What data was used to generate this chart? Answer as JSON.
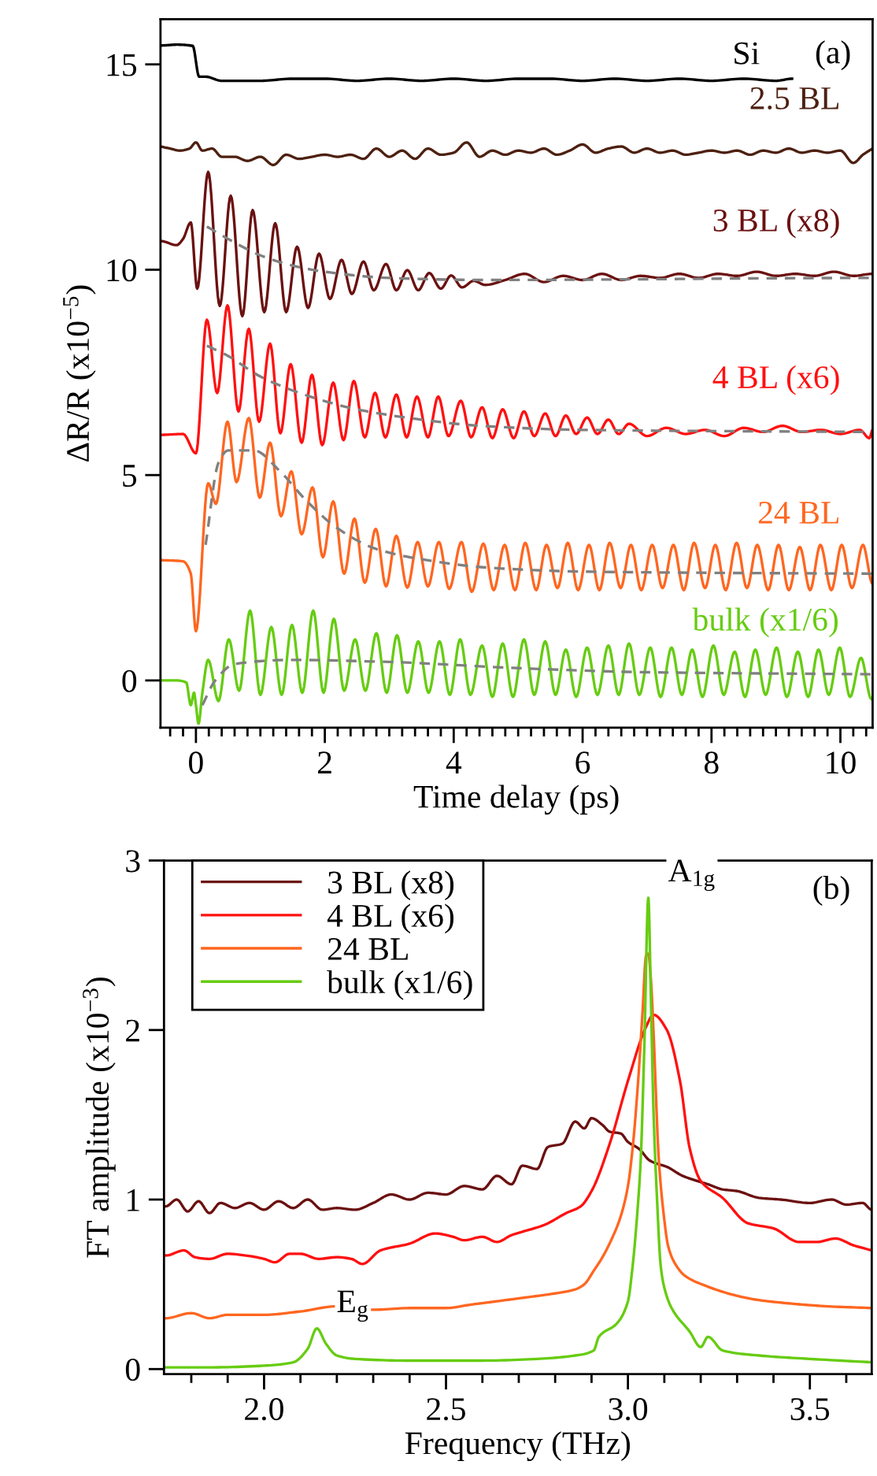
{
  "chart_data": [
    {
      "type": "line",
      "xlabel": "Time delay (ps)",
      "ylabel": "ΔR/R (x10$^{−5}$)",
      "xlim": [
        -0.55,
        10.5
      ],
      "ylim": [
        -1.15,
        16.1
      ],
      "xticks": [
        {
          "value": -0.4,
          "label": null
        },
        {
          "value": -0.2,
          "label": null
        },
        0,
        {
          "value": 0.2,
          "label": null
        },
        {
          "value": 0.4,
          "label": null
        },
        {
          "value": 0.6,
          "label": null
        },
        {
          "value": 0.8,
          "label": null
        },
        {
          "value": 1,
          "label": null
        },
        {
          "value": 1.2,
          "label": null
        },
        {
          "value": 1.4,
          "label": null
        },
        {
          "value": 1.6,
          "label": null
        },
        {
          "value": 1.8,
          "label": null
        },
        2,
        {
          "value": 2.2,
          "label": null
        },
        {
          "value": 2.4,
          "label": null
        },
        {
          "value": 2.6,
          "label": null
        },
        {
          "value": 2.8,
          "label": null
        },
        {
          "value": 3,
          "label": null
        },
        {
          "value": 3.2,
          "label": null
        },
        {
          "value": 3.4,
          "label": null
        },
        {
          "value": 3.6,
          "label": null
        },
        {
          "value": 3.8,
          "label": null
        },
        4,
        {
          "value": 4.2,
          "label": null
        },
        {
          "value": 4.4,
          "label": null
        },
        {
          "value": 4.6,
          "label": null
        },
        {
          "value": 4.8,
          "label": null
        },
        {
          "value": 5,
          "label": null
        },
        {
          "value": 5.2,
          "label": null
        },
        {
          "value": 5.4,
          "label": null
        },
        {
          "value": 5.6,
          "label": null
        },
        {
          "value": 5.8,
          "label": null
        },
        6,
        {
          "value": 6.2,
          "label": null
        },
        {
          "value": 6.4,
          "label": null
        },
        {
          "value": 6.6,
          "label": null
        },
        {
          "value": 6.8,
          "label": null
        },
        {
          "value": 7,
          "label": null
        },
        {
          "value": 7.2,
          "label": null
        },
        {
          "value": 7.4,
          "label": null
        },
        {
          "value": 7.6,
          "label": null
        },
        {
          "value": 7.8,
          "label": null
        },
        8,
        {
          "value": 8.2,
          "label": null
        },
        {
          "value": 8.4,
          "label": null
        },
        {
          "value": 8.6,
          "label": null
        },
        {
          "value": 8.8,
          "label": null
        },
        {
          "value": 9,
          "label": null
        },
        {
          "value": 9.2,
          "label": null
        },
        {
          "value": 9.4,
          "label": null
        },
        {
          "value": 9.6,
          "label": null
        },
        {
          "value": 9.8,
          "label": null
        },
        10,
        {
          "value": 10.2,
          "label": null
        },
        {
          "value": 10.4,
          "label": null
        }
      ],
      "yticks": [
        0,
        5,
        10,
        15
      ],
      "grid": false,
      "legend": false,
      "annotations": [
        "(a)"
      ],
      "series": [
        {
          "name": "Si",
          "color": "#000000",
          "x": [
            -0.55,
            -0.3,
            -0.05,
            0.05,
            0.15,
            0.4,
            0.6,
            1.0,
            1.5,
            2,
            2.5,
            3,
            3.5,
            4,
            4.5,
            5,
            5.5,
            6,
            6.5,
            7,
            7.5,
            8,
            8.5,
            9,
            9.25
          ],
          "values": [
            15.46,
            15.48,
            15.45,
            14.7,
            14.7,
            14.6,
            14.6,
            14.6,
            14.65,
            14.65,
            14.6,
            14.65,
            14.6,
            14.65,
            14.6,
            14.65,
            14.65,
            14.6,
            14.65,
            14.6,
            14.65,
            14.6,
            14.65,
            14.6,
            14.65
          ]
        },
        {
          "name": "2.5 BL",
          "color": "#4d2010",
          "x": [
            -0.55,
            -0.4,
            -0.25,
            -0.1,
            0.0,
            0.1,
            0.25,
            0.4,
            0.6,
            0.8,
            1.0,
            1.2,
            1.4,
            1.6,
            1.8,
            2.0,
            2.2,
            2.4,
            2.6,
            2.8,
            3.0,
            3.2,
            3.4,
            3.6,
            3.8,
            4.0,
            4.2,
            4.4,
            4.6,
            4.8,
            5.0,
            5.2,
            5.4,
            5.6,
            5.8,
            6.0,
            6.2,
            6.4,
            6.6,
            6.8,
            7.0,
            7.2,
            7.4,
            7.6,
            7.8,
            8.0,
            8.2,
            8.4,
            8.6,
            8.8,
            9.0,
            9.2,
            9.4,
            9.6,
            9.8,
            10.0,
            10.2,
            10.35,
            10.5
          ],
          "values": [
            13.0,
            12.95,
            12.9,
            12.95,
            13.1,
            12.9,
            12.95,
            12.75,
            12.75,
            12.65,
            12.75,
            12.55,
            12.8,
            12.7,
            12.75,
            12.8,
            12.75,
            12.8,
            12.7,
            12.95,
            12.75,
            12.9,
            12.7,
            12.95,
            12.8,
            12.85,
            13.1,
            12.75,
            12.9,
            12.8,
            12.9,
            12.85,
            12.95,
            12.8,
            12.9,
            13.05,
            12.85,
            12.95,
            13.0,
            12.85,
            12.95,
            12.85,
            12.9,
            12.8,
            12.85,
            12.9,
            12.85,
            12.9,
            12.8,
            12.9,
            12.85,
            12.95,
            12.85,
            12.9,
            12.85,
            12.9,
            12.6,
            12.8,
            12.95
          ]
        },
        {
          "name": "3 BL (x8)",
          "color": "#6b1010",
          "x": [
            -0.55,
            -0.3,
            -0.2,
            -0.08,
            0.02,
            0.19,
            0.37,
            0.54,
            0.72,
            0.88,
            1.06,
            1.23,
            1.4,
            1.57,
            1.74,
            1.91,
            2.08,
            2.26,
            2.42,
            2.6,
            2.76,
            2.95,
            3.11,
            3.28,
            3.45,
            3.62,
            3.8,
            3.96,
            4.13,
            4.31,
            4.49,
            4.8,
            5.1,
            5.4,
            5.7,
            6.0,
            6.3,
            6.6,
            6.9,
            7.2,
            7.5,
            7.8,
            8.1,
            8.4,
            8.7,
            9.0,
            9.3,
            9.6,
            9.9,
            10.2,
            10.5
          ],
          "values": [
            10.7,
            10.6,
            10.75,
            11.15,
            9.54,
            12.38,
            9.12,
            11.8,
            8.87,
            11.45,
            8.97,
            11.13,
            8.97,
            10.56,
            9.07,
            10.39,
            9.29,
            10.24,
            9.41,
            10.2,
            9.5,
            10.14,
            9.5,
            9.99,
            9.5,
            9.92,
            9.54,
            9.86,
            9.57,
            9.73,
            9.63,
            9.75,
            9.9,
            9.7,
            9.85,
            9.75,
            9.9,
            9.75,
            9.85,
            9.8,
            9.9,
            9.8,
            9.9,
            9.85,
            9.95,
            9.85,
            9.9,
            9.85,
            9.95,
            9.85,
            9.9
          ]
        },
        {
          "name": "4 BL (x6)",
          "color": "#ff1010",
          "x": [
            -0.55,
            -0.2,
            0.0,
            0.17,
            0.33,
            0.49,
            0.66,
            0.82,
            0.98,
            1.15,
            1.31,
            1.47,
            1.64,
            1.8,
            1.96,
            2.13,
            2.29,
            2.45,
            2.62,
            2.78,
            2.94,
            3.11,
            3.27,
            3.43,
            3.6,
            3.76,
            3.92,
            4.11,
            4.27,
            4.44,
            4.6,
            4.76,
            4.93,
            5.09,
            5.25,
            5.42,
            5.58,
            5.74,
            5.9,
            6.07,
            6.23,
            6.4,
            6.56,
            6.72,
            7.0,
            7.3,
            7.6,
            7.9,
            8.2,
            8.5,
            8.8,
            9.1,
            9.4,
            9.7,
            10.0,
            10.3,
            10.45,
            10.5
          ],
          "values": [
            5.98,
            6.0,
            5.53,
            8.78,
            7.0,
            9.13,
            6.55,
            8.56,
            6.3,
            8.2,
            6.02,
            7.7,
            5.79,
            7.44,
            5.73,
            7.25,
            5.85,
            7.29,
            5.92,
            7.0,
            5.92,
            6.96,
            5.92,
            6.91,
            5.92,
            6.91,
            5.95,
            6.81,
            5.92,
            6.65,
            5.9,
            6.6,
            5.9,
            6.55,
            5.95,
            6.5,
            5.95,
            6.45,
            6.0,
            6.4,
            6.0,
            6.35,
            6.0,
            6.25,
            5.95,
            6.15,
            6.0,
            6.1,
            5.95,
            6.15,
            6.05,
            6.2,
            6.05,
            6.1,
            6.0,
            6.1,
            5.9,
            6.1
          ]
        },
        {
          "name": "24 BL",
          "color": "#ff6620",
          "x": [
            -0.55,
            -0.2,
            -0.08,
            0.0,
            0.19,
            0.31,
            0.49,
            0.63,
            0.82,
            0.99,
            1.15,
            1.32,
            1.48,
            1.64,
            1.81,
            1.97,
            2.13,
            2.3,
            2.46,
            2.62,
            2.79,
            2.95,
            3.11,
            3.28,
            3.44,
            3.6,
            3.77,
            3.93,
            4.12,
            4.28,
            4.46,
            4.62,
            4.79,
            4.95,
            5.11,
            5.28,
            5.44,
            5.61,
            5.77,
            5.93,
            6.1,
            6.26,
            6.42,
            6.59,
            6.75,
            6.91,
            7.08,
            7.24,
            7.41,
            7.57,
            7.73,
            7.9,
            8.06,
            8.22,
            8.39,
            8.55,
            8.71,
            8.88,
            9.04,
            9.2,
            9.37,
            9.53,
            9.69,
            9.86,
            10.02,
            10.18,
            10.35,
            10.5
          ],
          "values": [
            2.93,
            2.9,
            2.6,
            1.2,
            4.8,
            4.3,
            6.3,
            4.83,
            6.39,
            4.45,
            5.79,
            4.0,
            5.09,
            3.56,
            4.7,
            3.0,
            4.36,
            2.6,
            3.94,
            2.38,
            3.69,
            2.29,
            3.52,
            2.26,
            3.37,
            2.29,
            3.37,
            2.23,
            3.37,
            2.16,
            3.33,
            2.2,
            3.3,
            2.2,
            3.35,
            2.2,
            3.3,
            2.25,
            3.35,
            2.2,
            3.3,
            2.2,
            3.35,
            2.25,
            3.3,
            2.2,
            3.3,
            2.25,
            3.3,
            2.2,
            3.35,
            2.25,
            3.3,
            2.2,
            3.35,
            2.25,
            3.3,
            2.2,
            3.3,
            2.2,
            3.25,
            2.2,
            3.3,
            2.2,
            3.3,
            2.25,
            3.3,
            2.35
          ]
        },
        {
          "name": "bulk (x1/6)",
          "color": "#66cc11",
          "x": [
            -0.55,
            -0.3,
            -0.15,
            -0.08,
            -0.03,
            0.0,
            0.04,
            0.1,
            0.19,
            0.35,
            0.51,
            0.67,
            0.84,
            1.0,
            1.17,
            1.33,
            1.49,
            1.65,
            1.82,
            1.98,
            2.14,
            2.3,
            2.47,
            2.63,
            2.8,
            2.96,
            3.12,
            3.28,
            3.45,
            3.61,
            3.78,
            3.94,
            4.1,
            4.26,
            4.44,
            4.6,
            4.76,
            4.92,
            5.09,
            5.25,
            5.42,
            5.58,
            5.74,
            5.9,
            6.07,
            6.23,
            6.4,
            6.56,
            6.72,
            6.88,
            7.05,
            7.21,
            7.38,
            7.54,
            7.7,
            7.86,
            8.03,
            8.19,
            8.36,
            8.52,
            8.68,
            8.84,
            9.01,
            9.17,
            9.34,
            9.5,
            9.66,
            9.82,
            9.99,
            10.15,
            10.32,
            10.48
          ],
          "values": [
            0,
            0,
            -0.05,
            -0.6,
            -0.3,
            -0.6,
            -1.05,
            -0.3,
            0.5,
            -0.5,
            1.0,
            -0.25,
            1.7,
            -0.35,
            1.3,
            -0.35,
            1.35,
            -0.3,
            1.7,
            -0.3,
            1.5,
            -0.25,
            1.0,
            -0.25,
            1.15,
            -0.3,
            1.1,
            -0.3,
            0.95,
            -0.3,
            0.95,
            -0.35,
            1.0,
            -0.35,
            0.85,
            -0.4,
            0.9,
            -0.4,
            1.0,
            -0.35,
            0.95,
            -0.35,
            0.75,
            -0.4,
            0.8,
            -0.35,
            0.85,
            -0.35,
            0.9,
            -0.35,
            0.8,
            -0.4,
            0.8,
            -0.35,
            0.75,
            -0.4,
            0.85,
            -0.35,
            0.7,
            -0.4,
            0.75,
            -0.35,
            0.8,
            -0.4,
            0.7,
            -0.4,
            0.75,
            -0.35,
            0.8,
            -0.4,
            0.55,
            -0.45
          ]
        },
        {
          "color": "#808080",
          "line_style": "dashed",
          "x": [
            0.17,
            0.5,
            1,
            1.5,
            2,
            3,
            4.5,
            10.5
          ],
          "values": [
            11.05,
            10.75,
            10.35,
            10.1,
            9.95,
            9.8,
            9.75,
            9.8
          ]
        },
        {
          "color": "#808080",
          "line_style": "dashed",
          "x": [
            0.17,
            0.5,
            1,
            1.7,
            2.5,
            3.5,
            4.4,
            6,
            10.5
          ],
          "values": [
            8.15,
            7.9,
            7.4,
            6.95,
            6.6,
            6.35,
            6.2,
            6.1,
            6.05
          ]
        },
        {
          "color": "#808080",
          "line_style": "dashed",
          "x": [
            0.15,
            0.35,
            0.5,
            0.9,
            1.3,
            1.7,
            2.2,
            2.8,
            3.5,
            4.5,
            6,
            8,
            10.5
          ],
          "values": [
            3.3,
            5.3,
            5.6,
            5.6,
            5.1,
            4.4,
            3.7,
            3.2,
            2.95,
            2.75,
            2.65,
            2.62,
            2.6
          ]
        },
        {
          "color": "#808080",
          "line_style": "dashed",
          "x": [
            0.1,
            0.3,
            0.6,
            1.5,
            3,
            5,
            7,
            10.5
          ],
          "values": [
            -0.6,
            0.0,
            0.4,
            0.5,
            0.45,
            0.3,
            0.2,
            0.15
          ]
        }
      ]
    },
    {
      "type": "line",
      "xlabel": "Frequency (THz)",
      "ylabel": "FT amplitude (x10$^{−3}$)",
      "xlim": [
        1.725,
        3.67
      ],
      "ylim": [
        -0.03,
        3.0
      ],
      "xticks": [
        {
          "value": 1.8,
          "label": null
        },
        {
          "value": 1.9,
          "label": null
        },
        {
          "value": 2.0,
          "label": "2.0"
        },
        {
          "value": 2.1,
          "label": null
        },
        {
          "value": 2.2,
          "label": null
        },
        {
          "value": 2.3,
          "label": null
        },
        {
          "value": 2.4,
          "label": null
        },
        {
          "value": 2.5,
          "label": "2.5"
        },
        {
          "value": 2.6,
          "label": null
        },
        {
          "value": 2.7,
          "label": null
        },
        {
          "value": 2.8,
          "label": null
        },
        {
          "value": 2.9,
          "label": null
        },
        {
          "value": 3.0,
          "label": "3.0"
        },
        {
          "value": 3.1,
          "label": null
        },
        {
          "value": 3.2,
          "label": null
        },
        {
          "value": 3.3,
          "label": null
        },
        {
          "value": 3.4,
          "label": null
        },
        {
          "value": 3.5,
          "label": "3.5"
        },
        {
          "value": 3.6,
          "label": null
        }
      ],
      "yticks": [
        0,
        1,
        2,
        3
      ],
      "grid": false,
      "legend": "top left",
      "annotations": [
        "(b)",
        {
          "text": "E$_{g}$",
          "x": 2.145,
          "y": 0.24
        },
        {
          "text": "A$_{1g}$",
          "x": 3.056,
          "y": 2.78
        }
      ],
      "series": [
        {
          "name": "3 BL (x8)",
          "color": "#6b1010",
          "x": [
            1.73,
            1.76,
            1.79,
            1.82,
            1.85,
            1.88,
            1.92,
            1.96,
            2.0,
            2.04,
            2.08,
            2.12,
            2.16,
            2.2,
            2.25,
            2.3,
            2.35,
            2.4,
            2.45,
            2.5,
            2.55,
            2.6,
            2.64,
            2.68,
            2.71,
            2.75,
            2.78,
            2.82,
            2.855,
            2.88,
            2.9,
            2.93,
            2.95,
            2.98,
            3.0,
            3.03,
            3.06,
            3.11,
            3.15,
            3.19,
            3.22,
            3.26,
            3.3,
            3.36,
            3.42,
            3.5,
            3.56,
            3.6,
            3.645,
            3.67
          ],
          "values": [
            0.96,
            1.0,
            0.93,
            0.99,
            0.92,
            0.98,
            0.95,
            0.98,
            0.94,
            0.99,
            0.95,
            1.0,
            0.94,
            0.95,
            0.94,
            0.98,
            1.03,
            1.0,
            1.04,
            1.03,
            1.08,
            1.06,
            1.14,
            1.09,
            1.2,
            1.18,
            1.31,
            1.33,
            1.46,
            1.42,
            1.48,
            1.44,
            1.4,
            1.39,
            1.34,
            1.3,
            1.23,
            1.19,
            1.14,
            1.11,
            1.09,
            1.06,
            1.05,
            1.01,
            1.0,
            0.98,
            1.0,
            0.97,
            0.98,
            0.94
          ]
        },
        {
          "name": "4 BL (x6)",
          "color": "#ff1010",
          "x": [
            1.73,
            1.78,
            1.81,
            1.85,
            1.9,
            1.95,
            2.0,
            2.03,
            2.07,
            2.1,
            2.15,
            2.2,
            2.24,
            2.27,
            2.32,
            2.4,
            2.47,
            2.52,
            2.55,
            2.6,
            2.64,
            2.68,
            2.71,
            2.77,
            2.83,
            2.87,
            2.9,
            2.95,
            3.0,
            3.05,
            3.07,
            3.107,
            3.143,
            3.17,
            3.2,
            3.26,
            3.33,
            3.4,
            3.47,
            3.52,
            3.57,
            3.62,
            3.67
          ],
          "values": [
            0.67,
            0.7,
            0.66,
            0.65,
            0.68,
            0.67,
            0.65,
            0.63,
            0.68,
            0.68,
            0.65,
            0.66,
            0.65,
            0.62,
            0.7,
            0.74,
            0.8,
            0.78,
            0.76,
            0.78,
            0.75,
            0.79,
            0.81,
            0.85,
            0.92,
            0.96,
            1.05,
            1.33,
            1.7,
            2.02,
            2.09,
            2.0,
            1.7,
            1.3,
            1.11,
            1.01,
            0.86,
            0.83,
            0.75,
            0.75,
            0.77,
            0.73,
            0.7
          ]
        },
        {
          "name": "24 BL",
          "color": "#ff6620",
          "x": [
            1.73,
            1.8,
            1.85,
            1.9,
            2.0,
            2.1,
            2.2,
            2.3,
            2.4,
            2.5,
            2.568,
            2.64,
            2.71,
            2.78,
            2.855,
            2.88,
            2.906,
            2.93,
            2.956,
            2.98,
            3.0,
            3.015,
            3.028,
            3.04,
            3.05,
            3.056,
            3.063,
            3.07,
            3.085,
            3.1,
            3.11,
            3.13,
            3.157,
            3.215,
            3.286,
            3.35,
            3.43,
            3.55,
            3.67
          ],
          "values": [
            0.3,
            0.33,
            0.3,
            0.32,
            0.32,
            0.34,
            0.37,
            0.35,
            0.36,
            0.36,
            0.38,
            0.4,
            0.42,
            0.44,
            0.47,
            0.5,
            0.58,
            0.66,
            0.77,
            0.9,
            1.08,
            1.35,
            1.7,
            2.1,
            2.44,
            2.45,
            2.3,
            2.0,
            1.23,
            0.88,
            0.73,
            0.62,
            0.55,
            0.49,
            0.44,
            0.41,
            0.39,
            0.37,
            0.36
          ]
        },
        {
          "name": "bulk (x1/6)",
          "color": "#66cc11",
          "x": [
            1.73,
            1.85,
            2.0,
            2.08,
            2.12,
            2.145,
            2.17,
            2.2,
            2.25,
            2.4,
            2.6,
            2.75,
            2.855,
            2.906,
            2.92,
            2.97,
            3.0,
            3.013,
            3.025,
            3.035,
            3.045,
            3.056,
            3.063,
            3.07,
            3.08,
            3.09,
            3.1,
            3.12,
            3.17,
            3.2,
            3.22,
            3.26,
            3.36,
            3.5,
            3.67
          ],
          "values": [
            0.01,
            0.01,
            0.02,
            0.04,
            0.12,
            0.24,
            0.15,
            0.08,
            0.06,
            0.05,
            0.05,
            0.06,
            0.08,
            0.11,
            0.19,
            0.27,
            0.4,
            0.61,
            0.9,
            1.23,
            1.9,
            2.78,
            2.2,
            1.54,
            1.0,
            0.61,
            0.48,
            0.36,
            0.22,
            0.13,
            0.19,
            0.11,
            0.08,
            0.06,
            0.04
          ]
        }
      ]
    }
  ]
}
